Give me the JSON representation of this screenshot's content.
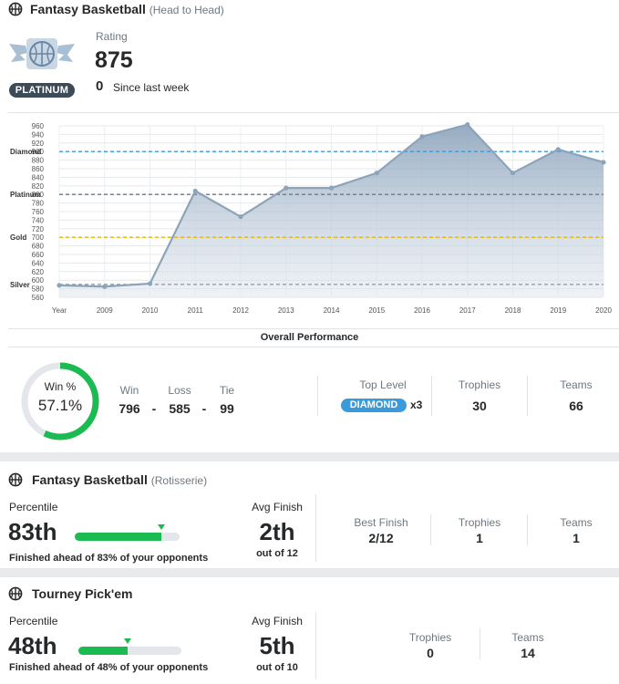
{
  "colors": {
    "accent_green": "#1cbb52",
    "diamond": "#3b9ad9",
    "platinum_badge": "#3d4a57",
    "chart_line": "#8da3b8",
    "gold_line": "#e3b800"
  },
  "section1": {
    "title": "Fantasy Basketball",
    "subtitle": "(Head to Head)",
    "badge_label": "PLATINUM",
    "rating_label": "Rating",
    "rating_value": "875",
    "change_value": "0",
    "change_label": "Since last week"
  },
  "chart_data": {
    "type": "area",
    "title": "",
    "xlabel": "",
    "ylabel": "",
    "x": [
      "Year",
      "2009",
      "2010",
      "2011",
      "2012",
      "2013",
      "2014",
      "2015",
      "2016",
      "2017",
      "2018",
      "2019",
      "2020"
    ],
    "values": [
      588,
      585,
      592,
      808,
      748,
      815,
      815,
      850,
      935,
      963,
      850,
      905,
      875
    ],
    "ylim": [
      560,
      960
    ],
    "yticks": [
      560,
      580,
      600,
      620,
      640,
      660,
      680,
      700,
      720,
      740,
      760,
      780,
      800,
      820,
      840,
      860,
      880,
      900,
      920,
      940,
      960
    ],
    "tier_lines": [
      {
        "label": "Diamond",
        "value": 900
      },
      {
        "label": "Platinum",
        "value": 800
      },
      {
        "label": "Gold",
        "value": 700
      },
      {
        "label": "Silver",
        "value": 590
      }
    ],
    "grid": true
  },
  "overall": {
    "title": "Overall Performance",
    "win_pct_label": "Win %",
    "win_pct_value": "57.1%",
    "win_pct_num": 57.1,
    "win_label": "Win",
    "loss_label": "Loss",
    "tie_label": "Tie",
    "win_value": "796",
    "loss_value": "585",
    "tie_value": "99",
    "sep": "-",
    "top_level_label": "Top Level",
    "top_level_badge": "DIAMOND",
    "top_level_count": "x3",
    "trophies_label": "Trophies",
    "trophies_value": "30",
    "teams_label": "Teams",
    "teams_value": "66"
  },
  "section2": {
    "title": "Fantasy Basketball",
    "subtitle": "(Rotisserie)",
    "percentile_label": "Percentile",
    "percentile_value": "83th",
    "percentile_num": 83,
    "ahead_text": "Finished ahead of 83% of your opponents",
    "avg_finish_label": "Avg Finish",
    "avg_finish_value": "2th",
    "avg_finish_sub": "out of 12",
    "best_finish_label": "Best Finish",
    "best_finish_value": "2/12",
    "trophies_label": "Trophies",
    "trophies_value": "1",
    "teams_label": "Teams",
    "teams_value": "1"
  },
  "section3": {
    "title": "Tourney Pick'em",
    "percentile_label": "Percentile",
    "percentile_value": "48th",
    "percentile_num": 48,
    "ahead_text": "Finished ahead of 48% of your opponents",
    "avg_finish_label": "Avg Finish",
    "avg_finish_value": "5th",
    "avg_finish_sub": "out of 10",
    "trophies_label": "Trophies",
    "trophies_value": "0",
    "teams_label": "Teams",
    "teams_value": "14"
  }
}
